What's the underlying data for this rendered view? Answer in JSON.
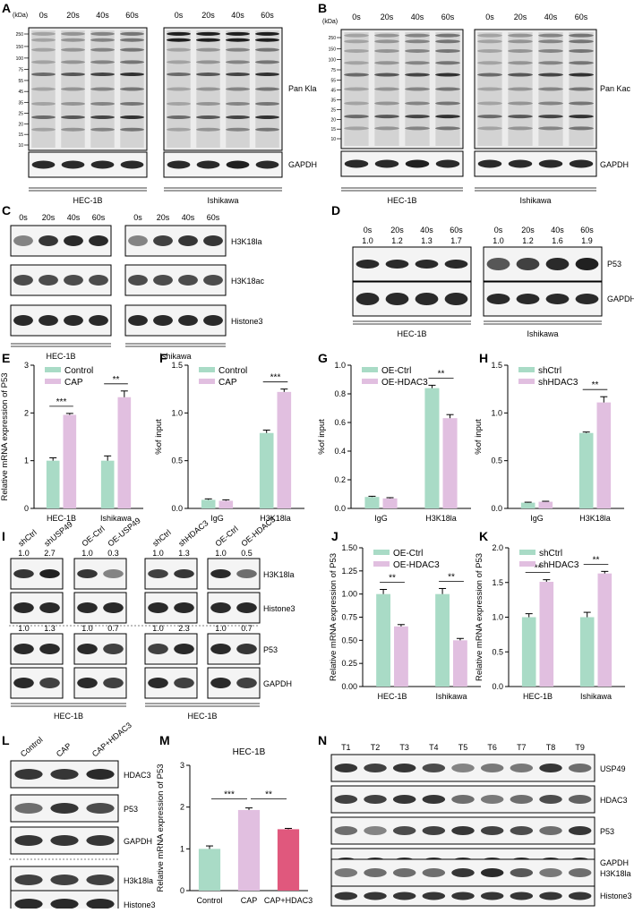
{
  "panels": {
    "A": {
      "letter": "A",
      "mw_unit": "(kDa)",
      "markers": [
        "250",
        "150",
        "100",
        "75",
        "55",
        "45",
        "35",
        "25",
        "20",
        "15",
        "10"
      ],
      "timepoints": [
        "0s",
        "20s",
        "40s",
        "60s"
      ],
      "target": "Pan Kla",
      "loading": "GAPDH",
      "cells": [
        "HEC-1B",
        "Ishikawa"
      ]
    },
    "B": {
      "letter": "B",
      "mw_unit": "(kDa)",
      "markers": [
        "250",
        "150",
        "100",
        "75",
        "55",
        "45",
        "35",
        "25",
        "20",
        "15",
        "10"
      ],
      "timepoints": [
        "0s",
        "20s",
        "40s",
        "60s"
      ],
      "target": "Pan Kac",
      "loading": "GAPDH",
      "cells": [
        "HEC-1B",
        "Ishikawa"
      ]
    },
    "C": {
      "letter": "C",
      "timepoints": [
        "0s",
        "20s",
        "40s",
        "60s"
      ],
      "blots": [
        "H3K18la",
        "H3K18ac",
        "Histone3"
      ],
      "cells": [
        "HEC-1B",
        "Ishikawa"
      ]
    },
    "D": {
      "letter": "D",
      "timepoints": [
        "0s",
        "20s",
        "40s",
        "60s"
      ],
      "ratios_hec": [
        "1.0",
        "1.2",
        "1.3",
        "1.7"
      ],
      "ratios_ish": [
        "1.0",
        "1.2",
        "1.6",
        "1.9"
      ],
      "blots": [
        "P53",
        "GAPDH"
      ],
      "cells": [
        "HEC-1B",
        "Ishikawa"
      ]
    },
    "I": {
      "letter": "I",
      "groups": [
        {
          "lanes": [
            "shCtrl",
            "shUSP49"
          ],
          "h3_ratios": [
            "1.0",
            "2.7"
          ],
          "p53_ratios": [
            "1.0",
            "1.3"
          ]
        },
        {
          "lanes": [
            "OE-Ctrl",
            "OE-USP49"
          ],
          "h3_ratios": [
            "1.0",
            "0.3"
          ],
          "p53_ratios": [
            "1.0",
            "0.7"
          ]
        },
        {
          "lanes": [
            "shCtrl",
            "shHDAC3"
          ],
          "h3_ratios": [
            "1.0",
            "1.3"
          ],
          "p53_ratios": [
            "1.0",
            "2.3"
          ]
        },
        {
          "lanes": [
            "OE-Ctrl",
            "OE-HDAC3"
          ],
          "h3_ratios": [
            "1.0",
            "0.5"
          ],
          "p53_ratios": [
            "1.0",
            "0.7"
          ]
        }
      ],
      "blots": [
        "H3K18la",
        "Histone3",
        "P53",
        "GAPDH"
      ],
      "cells": [
        "HEC-1B",
        "HEC-1B"
      ]
    },
    "L": {
      "letter": "L",
      "lanes": [
        "Control",
        "CAP",
        "CAP+HDAC3"
      ],
      "blots": [
        "HDAC3",
        "P53",
        "GAPDH",
        "H3k18la",
        "Histone3"
      ],
      "cell": "HEC-1B"
    },
    "N": {
      "letter": "N",
      "lanes": [
        "T1",
        "T2",
        "T3",
        "T4",
        "T5",
        "T6",
        "T7",
        "T8",
        "T9"
      ],
      "blots": [
        "USP49",
        "HDAC3",
        "P53",
        "GAPDH",
        "H3K18la",
        "Histone3"
      ]
    }
  },
  "chart_data": [
    {
      "id": "E",
      "letter": "E",
      "type": "bar",
      "title": "",
      "categories": [
        "HEC-1B",
        "Ishikawa"
      ],
      "series": [
        {
          "name": "Control",
          "values": [
            1.0,
            1.0
          ],
          "errors": [
            0.06,
            0.1
          ],
          "color": "#a9dbc6"
        },
        {
          "name": "CAP",
          "values": [
            1.96,
            2.33
          ],
          "errors": [
            0.03,
            0.13
          ],
          "color": "#e1bfe0"
        }
      ],
      "ylabel": "Relative mRNA expression of P53",
      "xlabel": "",
      "ylim": [
        0,
        3
      ],
      "yticks": [
        "0",
        "1",
        "2",
        "3"
      ],
      "significance": [
        "***",
        "**"
      ],
      "legend": "top-left",
      "grid": false
    },
    {
      "id": "F",
      "letter": "F",
      "type": "bar",
      "title": "",
      "categories": [
        "IgG",
        "H3K18la"
      ],
      "series": [
        {
          "name": "Control",
          "values": [
            0.09,
            0.79
          ],
          "errors": [
            0.01,
            0.03
          ],
          "color": "#a9dbc6"
        },
        {
          "name": "CAP",
          "values": [
            0.08,
            1.22
          ],
          "errors": [
            0.01,
            0.03
          ],
          "color": "#e1bfe0"
        }
      ],
      "ylabel": "%of input",
      "xlabel": "",
      "ylim": [
        0,
        1.5
      ],
      "yticks": [
        "0.0",
        "0.5",
        "1.0",
        "1.5"
      ],
      "significance": [
        "",
        "***"
      ],
      "legend": "top-left",
      "grid": false
    },
    {
      "id": "G",
      "letter": "G",
      "type": "bar",
      "title": "",
      "categories": [
        "IgG",
        "H3K18la"
      ],
      "series": [
        {
          "name": "OE-Ctrl",
          "values": [
            0.08,
            0.84
          ],
          "errors": [
            0.005,
            0.02
          ],
          "color": "#a9dbc6"
        },
        {
          "name": "OE-HDAC3",
          "values": [
            0.07,
            0.63
          ],
          "errors": [
            0.005,
            0.025
          ],
          "color": "#e1bfe0"
        }
      ],
      "ylabel": "%of input",
      "xlabel": "",
      "ylim": [
        0,
        1.0
      ],
      "yticks": [
        "0.0",
        "0.2",
        "0.4",
        "0.6",
        "0.8",
        "1.0"
      ],
      "significance": [
        "",
        "**"
      ],
      "legend": "top-left",
      "grid": false
    },
    {
      "id": "H",
      "letter": "H",
      "type": "bar",
      "title": "",
      "categories": [
        "IgG",
        "H3K18la"
      ],
      "series": [
        {
          "name": "shCtrl",
          "values": [
            0.06,
            0.79
          ],
          "errors": [
            0.005,
            0.01
          ],
          "color": "#a9dbc6"
        },
        {
          "name": "shHDAC3",
          "values": [
            0.07,
            1.11
          ],
          "errors": [
            0.005,
            0.06
          ],
          "color": "#e1bfe0"
        }
      ],
      "ylabel": "%of input",
      "xlabel": "",
      "ylim": [
        0,
        1.5
      ],
      "yticks": [
        "0.0",
        "0.5",
        "1.0",
        "1.5"
      ],
      "significance": [
        "",
        "**"
      ],
      "legend": "top-left",
      "grid": false
    },
    {
      "id": "J",
      "letter": "J",
      "type": "bar",
      "title": "",
      "categories": [
        "HEC-1B",
        "Ishikawa"
      ],
      "series": [
        {
          "name": "OE-Ctrl",
          "values": [
            1.0,
            1.0
          ],
          "errors": [
            0.05,
            0.06
          ],
          "color": "#a9dbc6"
        },
        {
          "name": "OE-HDAC3",
          "values": [
            0.65,
            0.5
          ],
          "errors": [
            0.02,
            0.02
          ],
          "color": "#e1bfe0"
        }
      ],
      "ylabel": "Relative mRNA expression of P53",
      "xlabel": "",
      "ylim": [
        0,
        1.5
      ],
      "yticks": [
        "0.00",
        "0.25",
        "0.50",
        "0.75",
        "1.00",
        "1.25",
        "1.50"
      ],
      "significance": [
        "**",
        "**"
      ],
      "legend": "top-left",
      "grid": false
    },
    {
      "id": "K",
      "letter": "K",
      "type": "bar",
      "title": "",
      "categories": [
        "HEC-1B",
        "Ishikawa"
      ],
      "series": [
        {
          "name": "shCtrl",
          "values": [
            1.0,
            1.0
          ],
          "errors": [
            0.05,
            0.07
          ],
          "color": "#a9dbc6"
        },
        {
          "name": "shHDAC3",
          "values": [
            1.51,
            1.63
          ],
          "errors": [
            0.03,
            0.03
          ],
          "color": "#e1bfe0"
        }
      ],
      "ylabel": "Relative mRNA expression of P53",
      "xlabel": "",
      "ylim": [
        0,
        2.0
      ],
      "yticks": [
        "0.0",
        "0.5",
        "1.0",
        "1.5",
        "2.0"
      ],
      "significance": [
        "**",
        "**"
      ],
      "legend": "top-left",
      "grid": false
    },
    {
      "id": "M",
      "letter": "M",
      "type": "bar",
      "title": "HEC-1B",
      "categories": [
        "Control",
        "CAP",
        "CAP+HDAC3"
      ],
      "series": [
        {
          "name": "",
          "values": [
            1.0,
            1.93,
            1.47
          ],
          "errors": [
            0.07,
            0.05,
            0.02
          ],
          "colors": [
            "#a9dbc6",
            "#e1bfe0",
            "#e0587d"
          ]
        }
      ],
      "ylabel": "Relative mRNA expression of P53",
      "xlabel": "",
      "ylim": [
        0,
        3
      ],
      "yticks": [
        "0",
        "1",
        "2",
        "3"
      ],
      "significance": [
        "***",
        "**"
      ],
      "legend": "none",
      "grid": false
    }
  ]
}
